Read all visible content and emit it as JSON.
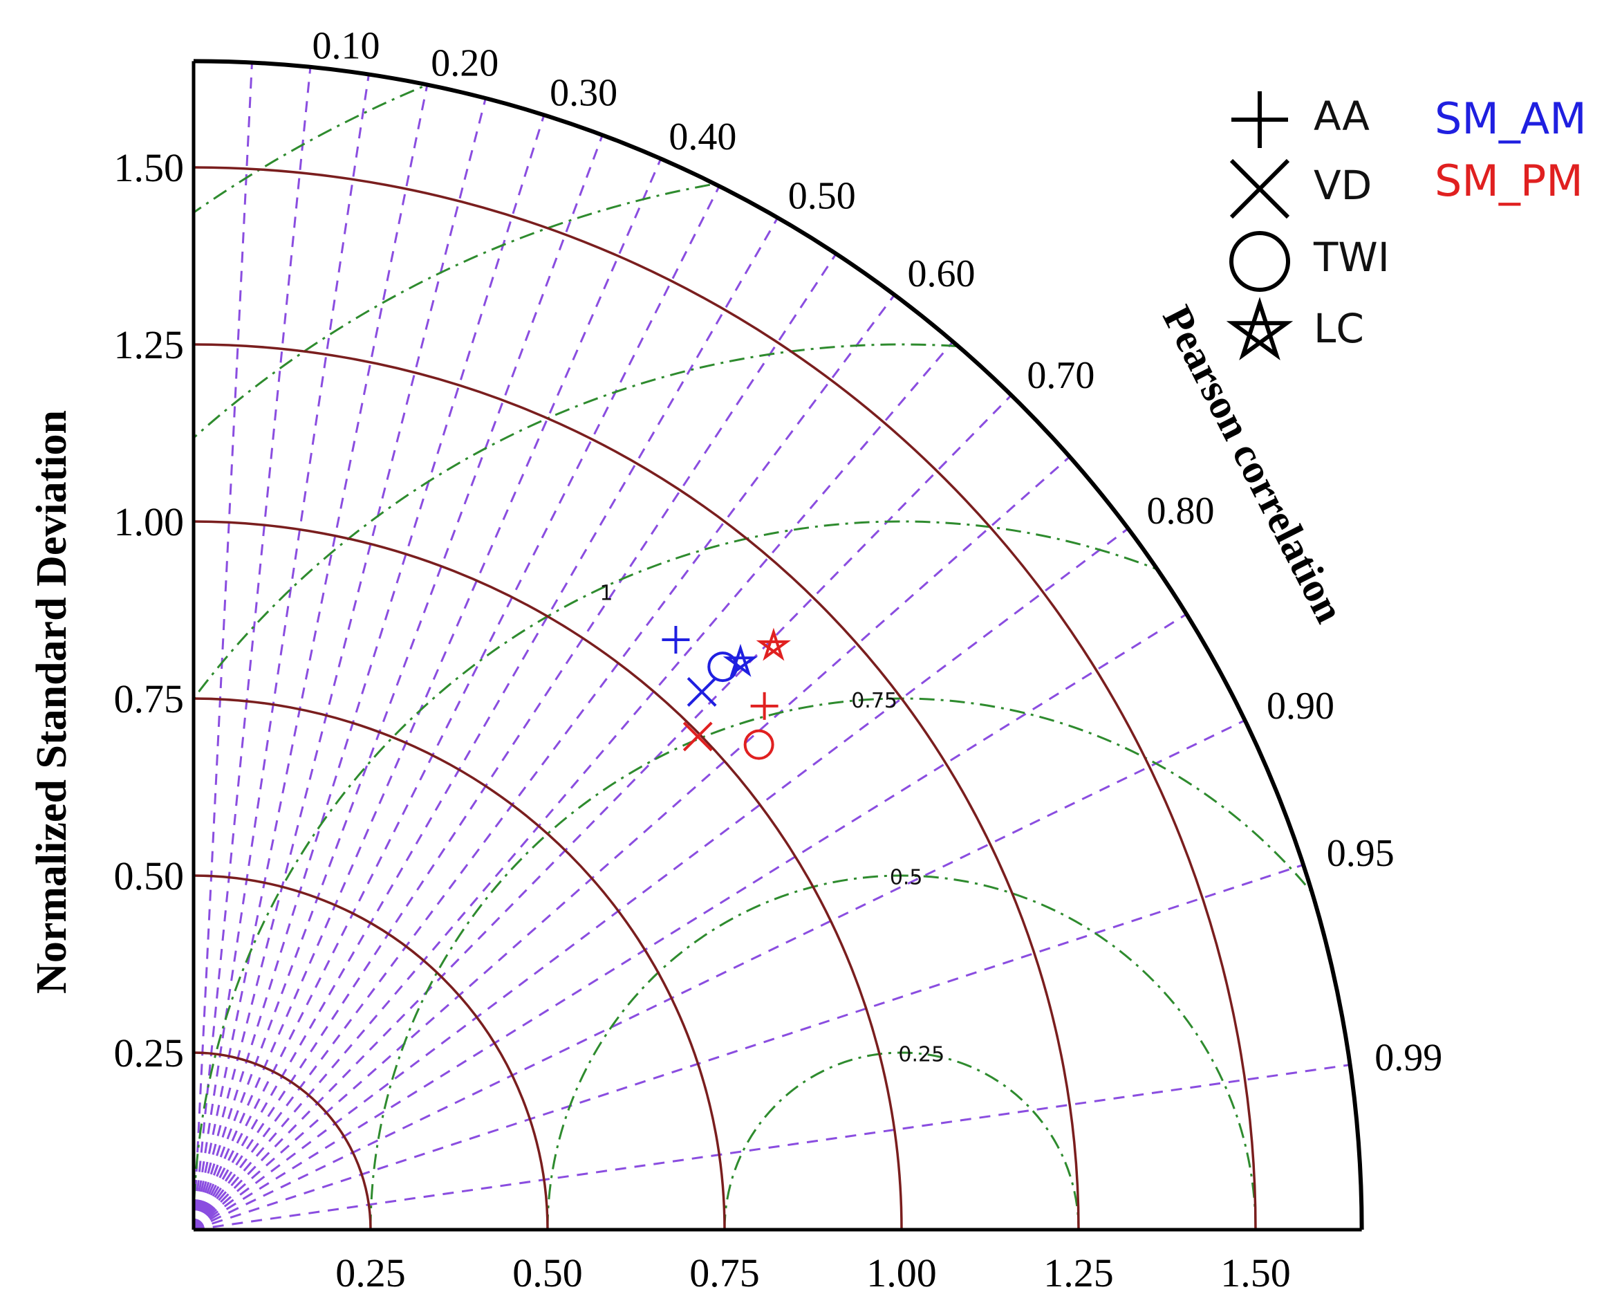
{
  "chart_data": {
    "type": "taylor",
    "ylabel": "Normalized Standard Deviation",
    "arc_label": "Pearson correlation",
    "std_max": 1.65,
    "std_ticks": [
      "0.25",
      "0.50",
      "0.75",
      "1.00",
      "1.25",
      "1.50"
    ],
    "std_tick_values": [
      0.25,
      0.5,
      0.75,
      1.0,
      1.25,
      1.5
    ],
    "corr_ticks": [
      "0.10",
      "0.20",
      "0.30",
      "0.40",
      "0.50",
      "0.60",
      "0.70",
      "0.80",
      "0.90",
      "0.95",
      "0.99"
    ],
    "corr_tick_values": [
      0.1,
      0.2,
      0.3,
      0.4,
      0.5,
      0.6,
      0.7,
      0.8,
      0.9,
      0.95,
      0.99
    ],
    "rmsd_values": [
      0.25,
      0.5,
      0.75,
      1.0,
      1.25,
      1.5,
      1.75
    ],
    "rmsd_labels": [
      {
        "value": 0.25,
        "text": "0.25"
      },
      {
        "value": 0.5,
        "text": "0.5"
      },
      {
        "value": 0.75,
        "text": "0.75"
      },
      {
        "value": 1.0,
        "text": "1"
      }
    ],
    "reference_std": 1.0,
    "legend_markers": [
      {
        "symbol": "plus",
        "label": "AA"
      },
      {
        "symbol": "cross",
        "label": "VD"
      },
      {
        "symbol": "circle",
        "label": "TWI"
      },
      {
        "symbol": "star",
        "label": "LC"
      }
    ],
    "legend_series": [
      {
        "name": "SM_AM",
        "color": "#1f1fe0"
      },
      {
        "name": "SM_PM",
        "color": "#e02020"
      }
    ],
    "series": [
      {
        "name": "SM_AM",
        "color": "#1f1fe0",
        "points": [
          {
            "marker": "AA",
            "symbol": "plus",
            "std": 1.076,
            "corr": 0.633
          },
          {
            "marker": "VD",
            "symbol": "cross",
            "std": 1.045,
            "corr": 0.687
          },
          {
            "marker": "TWI",
            "symbol": "circle",
            "std": 1.091,
            "corr": 0.685
          },
          {
            "marker": "LC",
            "symbol": "star",
            "std": 1.113,
            "corr": 0.694
          }
        ]
      },
      {
        "name": "SM_PM",
        "color": "#e02020",
        "points": [
          {
            "marker": "AA",
            "symbol": "plus",
            "std": 1.094,
            "corr": 0.737
          },
          {
            "marker": "VD",
            "symbol": "cross",
            "std": 0.996,
            "corr": 0.715
          },
          {
            "marker": "TWI",
            "symbol": "circle",
            "std": 1.052,
            "corr": 0.759
          },
          {
            "marker": "LC",
            "symbol": "star",
            "std": 1.162,
            "corr": 0.705
          }
        ]
      }
    ]
  }
}
